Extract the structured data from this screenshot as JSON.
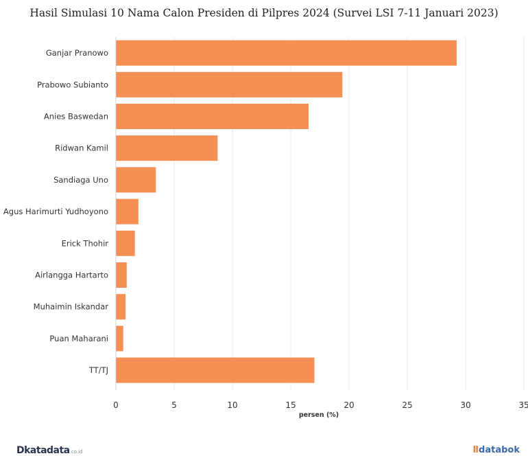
{
  "chart_data": {
    "type": "bar",
    "orientation": "horizontal",
    "title": "Hasil Simulasi 10 Nama Calon Presiden di Pilpres 2024 (Survei LSI 7-11 Januari 2023)",
    "xlabel": "persen (%)",
    "ylabel": "",
    "categories": [
      "Ganjar Pranowo",
      "Prabowo Subianto",
      "Anies Baswedan",
      "Ridwan Kamil",
      "Sandiaga Uno",
      "Agus Harimurti Yudhoyono",
      "Erick Thohir",
      "Airlangga Hartarto",
      "Muhaimin Iskandar",
      "Puan Maharani",
      "TT/TJ"
    ],
    "values": [
      29.2,
      19.4,
      16.5,
      8.7,
      3.4,
      1.9,
      1.6,
      0.9,
      0.8,
      0.6,
      17.0
    ],
    "xlim": [
      0,
      35
    ],
    "xticks": [
      "0",
      "5",
      "10",
      "15",
      "20",
      "25",
      "30",
      "35"
    ],
    "grid": true,
    "bar_color": "#f58f53",
    "grid_color": "#e8e8e8"
  },
  "brand": {
    "left_name": "katadata",
    "left_suffix": ".co.id",
    "left_mark": "D",
    "right_name": "databok",
    "right_mark": "Ⅱ"
  }
}
